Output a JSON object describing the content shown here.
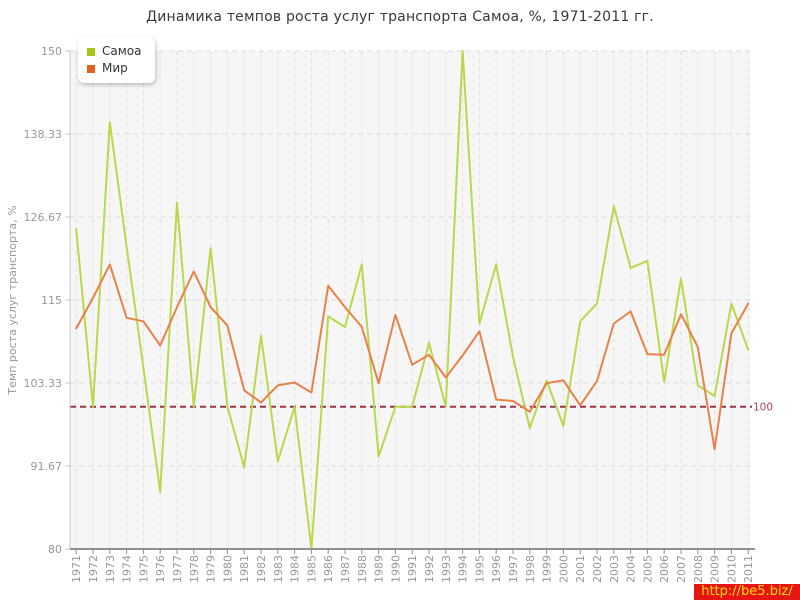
{
  "title": "Динамика темпов роста услуг транспорта Самоа, %, 1971-2011 гг.",
  "watermark": "http://be5.biz/",
  "legend": {
    "items": [
      {
        "label": "Самоа",
        "color": "#a6c712"
      },
      {
        "label": "Мир",
        "color": "#e2611e"
      }
    ]
  },
  "reference_line": {
    "value": 100,
    "label": "100",
    "line_color": "#993344",
    "label_color": "#a84a5a"
  },
  "colors": {
    "samoa_line": "#b9d94c",
    "mir_line": "#e8814b",
    "plot_bg": "#f6f6f6",
    "grid": "#dedede",
    "y_axis": "#c9c9c9",
    "x_axis": "#8f8f8f",
    "tick_text": "#999999",
    "title_text": "#3a3a3a"
  },
  "chart_data": {
    "type": "line",
    "title": "Динамика темпов роста услуг транспорта Самоа, %, 1971-2011 гг.",
    "xlabel": "",
    "ylabel": "Темп роста услуг транспорта, %",
    "ylim": [
      80,
      150
    ],
    "yticks": [
      80,
      91.67,
      103.33,
      115,
      126.67,
      138.33,
      150
    ],
    "ytick_labels": [
      "80",
      "91.67",
      "103.33",
      "115",
      "126.67",
      "138.33",
      "150"
    ],
    "grid": true,
    "legend_position": "top-left",
    "reference_line": 100,
    "x": [
      "1971",
      "1972",
      "1973",
      "1974",
      "1975",
      "1976",
      "1977",
      "1978",
      "1979",
      "1980",
      "1981",
      "1982",
      "1983",
      "1984",
      "1985",
      "1986",
      "1987",
      "1988",
      "1989",
      "1990",
      "1991",
      "1992",
      "1993",
      "1994",
      "1995",
      "1996",
      "1997",
      "1998",
      "1999",
      "2000",
      "2001",
      "2002",
      "2003",
      "2004",
      "2005",
      "2006",
      "2007",
      "2008",
      "2009",
      "2010",
      "2011"
    ],
    "series": [
      {
        "name": "Самоа",
        "values": [
          125,
          100,
          140,
          122.5,
          105.5,
          88,
          128.7,
          100,
          122.3,
          100,
          91.5,
          110,
          92.3,
          100,
          80,
          112.7,
          111.2,
          120,
          93,
          100,
          100,
          109,
          100,
          150,
          111.7,
          120,
          107,
          97,
          103.7,
          97.3,
          112,
          114.5,
          128.2,
          119.5,
          120.5,
          103.5,
          118,
          103,
          101.5,
          114.5,
          108
        ]
      },
      {
        "name": "Мир",
        "values": [
          111,
          115.3,
          120,
          112.5,
          112,
          108.6,
          114,
          119,
          114,
          111.4,
          102.3,
          100.6,
          103,
          103.4,
          102,
          117,
          114,
          111.2,
          103.3,
          112.9,
          105.9,
          107.3,
          104.1,
          107.2,
          110.6,
          101,
          100.8,
          99.3,
          103.3,
          103.7,
          100.2,
          103.6,
          111.7,
          113.4,
          107.4,
          107.3,
          113,
          108.4,
          94,
          110.3,
          114.5
        ]
      }
    ]
  }
}
